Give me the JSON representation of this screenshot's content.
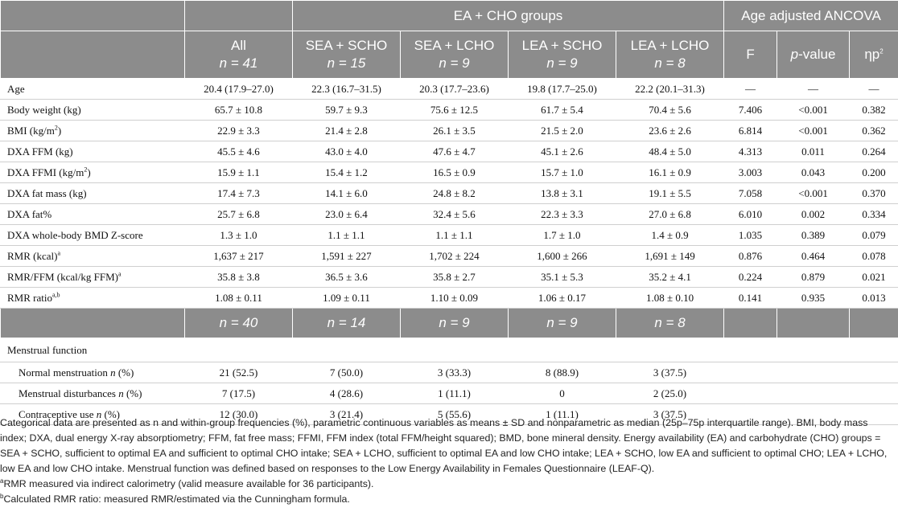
{
  "header": {
    "group_title": "EA + CHO groups",
    "ancova_title": "Age adjusted ANCOVA",
    "columns": [
      {
        "name": "All",
        "n": "n = 41"
      },
      {
        "name": "SEA + SCHO",
        "n": "n = 15"
      },
      {
        "name": "SEA + LCHO",
        "n": "n = 9"
      },
      {
        "name": "LEA + SCHO",
        "n": "n = 9"
      },
      {
        "name": "LEA + LCHO",
        "n": "n = 8"
      }
    ],
    "f_label": "F",
    "p_label": "p",
    "p_suffix": "-value",
    "eta_label": "ηp",
    "eta_sup": "2"
  },
  "rows": [
    {
      "label": "Age",
      "sup": "",
      "cells": [
        "20.4 (17.9–27.0)",
        "22.3 (16.7–31.5)",
        "20.3 (17.7–23.6)",
        "19.8 (17.7–25.0)",
        "22.2 (20.1–31.3)",
        "—",
        "—",
        "—"
      ]
    },
    {
      "label": "Body weight (kg)",
      "sup": "",
      "cells": [
        "65.7 ± 10.8",
        "59.7 ± 9.3",
        "75.6 ± 12.5",
        "61.7 ± 5.4",
        "70.4 ± 5.6",
        "7.406",
        "<0.001",
        "0.382"
      ]
    },
    {
      "label": "BMI (kg/m",
      "sup": "2",
      "tail": ")",
      "cells": [
        "22.9 ± 3.3",
        "21.4 ± 2.8",
        "26.1 ± 3.5",
        "21.5 ± 2.0",
        "23.6 ± 2.6",
        "6.814",
        "<0.001",
        "0.362"
      ]
    },
    {
      "label": "DXA FFM (kg)",
      "sup": "",
      "cells": [
        "45.5 ± 4.6",
        "43.0 ± 4.0",
        "47.6 ± 4.7",
        "45.1 ± 2.6",
        "48.4 ± 5.0",
        "4.313",
        "0.011",
        "0.264"
      ]
    },
    {
      "label": "DXA FFMI (kg/m",
      "sup": "2",
      "tail": ")",
      "cells": [
        "15.9 ± 1.1",
        "15.4 ± 1.2",
        "16.5 ± 0.9",
        "15.7 ± 1.0",
        "16.1 ± 0.9",
        "3.003",
        "0.043",
        "0.200"
      ]
    },
    {
      "label": "DXA fat mass (kg)",
      "sup": "",
      "cells": [
        "17.4 ± 7.3",
        "14.1 ± 6.0",
        "24.8 ± 8.2",
        "13.8 ± 3.1",
        "19.1 ± 5.5",
        "7.058",
        "<0.001",
        "0.370"
      ]
    },
    {
      "label": "DXA fat%",
      "sup": "",
      "cells": [
        "25.7 ± 6.8",
        "23.0 ± 6.4",
        "32.4 ± 5.6",
        "22.3 ± 3.3",
        "27.0 ± 6.8",
        "6.010",
        "0.002",
        "0.334"
      ]
    },
    {
      "label": "DXA whole-body BMD Z-score",
      "sup": "",
      "cells": [
        "1.3 ± 1.0",
        "1.1 ± 1.1",
        "1.1 ± 1.1",
        "1.7 ± 1.0",
        "1.4 ± 0.9",
        "1.035",
        "0.389",
        "0.079"
      ]
    },
    {
      "label": "RMR (kcal)",
      "sup": "a",
      "cells": [
        "1,637 ± 217",
        "1,591 ± 227",
        "1,702 ± 224",
        "1,600 ± 266",
        "1,691 ± 149",
        "0.876",
        "0.464",
        "0.078"
      ]
    },
    {
      "label": "RMR/FFM (kcal/kg FFM)",
      "sup": "a",
      "cells": [
        "35.8 ± 3.8",
        "36.5 ± 3.6",
        "35.8 ± 2.7",
        "35.1 ± 5.3",
        "35.2 ± 4.1",
        "0.224",
        "0.879",
        "0.021"
      ]
    },
    {
      "label": "RMR ratio",
      "sup": "a,b",
      "cells": [
        "1.08 ± 0.11",
        "1.09 ± 0.11",
        "1.10 ± 0.09",
        "1.06 ± 0.17",
        "1.08 ± 0.10",
        "0.141",
        "0.935",
        "0.013"
      ]
    }
  ],
  "n_row": [
    "n = 40",
    "n = 14",
    "n = 9",
    "n = 9",
    "n = 8"
  ],
  "section_label": "Menstrual function",
  "mens_rows": [
    {
      "label": "Normal menstruation",
      "n": "n",
      "pct": " (%)",
      "cells": [
        "21 (52.5)",
        "7 (50.0)",
        "3 (33.3)",
        "8 (88.9)",
        "3 (37.5)"
      ]
    },
    {
      "label": "Menstrual disturbances",
      "n": "n",
      "pct": " (%)",
      "cells": [
        "7 (17.5)",
        "4 (28.6)",
        "1 (11.1)",
        "0",
        "2 (25.0)"
      ]
    },
    {
      "label": "Contraceptive use",
      "n": "n",
      "pct": " (%)",
      "cells": [
        "12 (30.0)",
        "3 (21.4)",
        "5 (55.6)",
        "1 (11.1)",
        "3 (37.5)"
      ]
    }
  ],
  "footnotes": {
    "main": "Categorical data are presented as n and within-group frequencies (%), parametric continuous variables as means ± SD and nonparametric as median (25p–75p interquartile range). BMI, body mass index; DXA, dual energy X-ray absorptiometry; FFM, fat free mass; FFMI, FFM index (total FFM/height squared); BMD, bone mineral density. Energy availability (EA) and carbohydrate (CHO) groups = SEA + SCHO, sufficient to optimal EA and sufficient to optimal CHO intake; SEA + LCHO, sufficient to optimal EA and low CHO intake; LEA + SCHO, low EA and sufficient to optimal CHO; LEA + LCHO, low EA and low CHO intake. Menstrual function was defined based on responses to the Low Energy Availability in Females Questionnaire (LEAF-Q).",
    "a_mark": "a",
    "a_text": "RMR measured via indirect calorimetry (valid measure available for 36 participants).",
    "b_mark": "b",
    "b_text": "Calculated RMR ratio: measured RMR/estimated via the Cunningham formula."
  }
}
